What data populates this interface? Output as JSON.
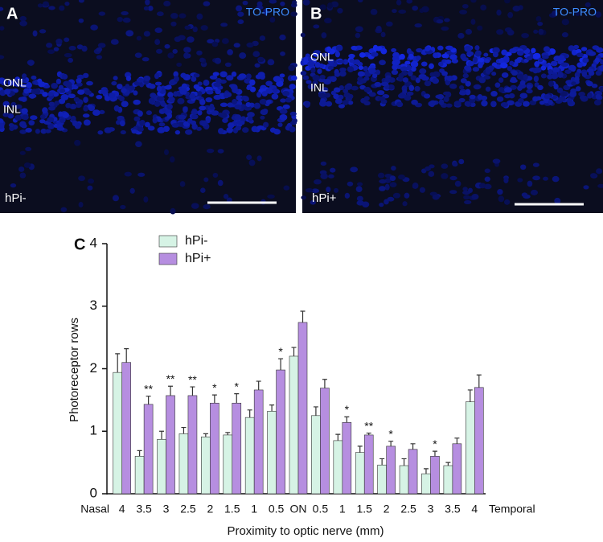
{
  "panels": [
    {
      "letter": "A",
      "stain": "TO-PRO",
      "layers": [
        "ONL",
        "INL"
      ],
      "condition": "hPi-"
    },
    {
      "letter": "B",
      "stain": "TO-PRO",
      "layers": [
        "ONL",
        "INL"
      ],
      "condition": "hPi+"
    }
  ],
  "chart_data": {
    "type": "bar",
    "panel_letter": "C",
    "ylabel": "Photoreceptor rows",
    "xlabel": "Proximity to optic nerve (mm)",
    "x_start_label": "Nasal",
    "x_end_label": "Temporal",
    "categories": [
      "4",
      "3.5",
      "3",
      "2.5",
      "2",
      "1.5",
      "1",
      "0.5",
      "ON",
      "0.5",
      "1",
      "1.5",
      "2",
      "2.5",
      "3",
      "3.5",
      "4"
    ],
    "series": [
      {
        "name": "hPi-",
        "color": "#d6f3e5",
        "values": [
          1.94,
          0.6,
          0.87,
          0.96,
          0.91,
          0.94,
          1.22,
          1.32,
          2.2,
          1.25,
          0.85,
          0.66,
          0.46,
          0.45,
          0.32,
          0.45,
          1.47
        ],
        "errors": [
          0.3,
          0.09,
          0.13,
          0.1,
          0.05,
          0.04,
          0.12,
          0.1,
          0.14,
          0.14,
          0.1,
          0.1,
          0.1,
          0.11,
          0.08,
          0.05,
          0.19
        ]
      },
      {
        "name": "hPi+",
        "color": "#b68ee0",
        "values": [
          2.1,
          1.43,
          1.57,
          1.57,
          1.45,
          1.45,
          1.66,
          1.98,
          2.74,
          1.69,
          1.14,
          0.94,
          0.76,
          0.71,
          0.6,
          0.8,
          1.7
        ],
        "errors": [
          0.22,
          0.13,
          0.15,
          0.14,
          0.13,
          0.15,
          0.14,
          0.18,
          0.18,
          0.14,
          0.09,
          0.03,
          0.08,
          0.09,
          0.08,
          0.09,
          0.2
        ]
      }
    ],
    "significance": [
      null,
      "**",
      "**",
      "**",
      "*",
      "*",
      null,
      "*",
      null,
      null,
      "*",
      "**",
      "*",
      null,
      "*",
      null,
      null
    ],
    "ylim": [
      0,
      4
    ],
    "yticks": [
      0,
      1,
      2,
      3,
      4
    ],
    "grid": false
  }
}
